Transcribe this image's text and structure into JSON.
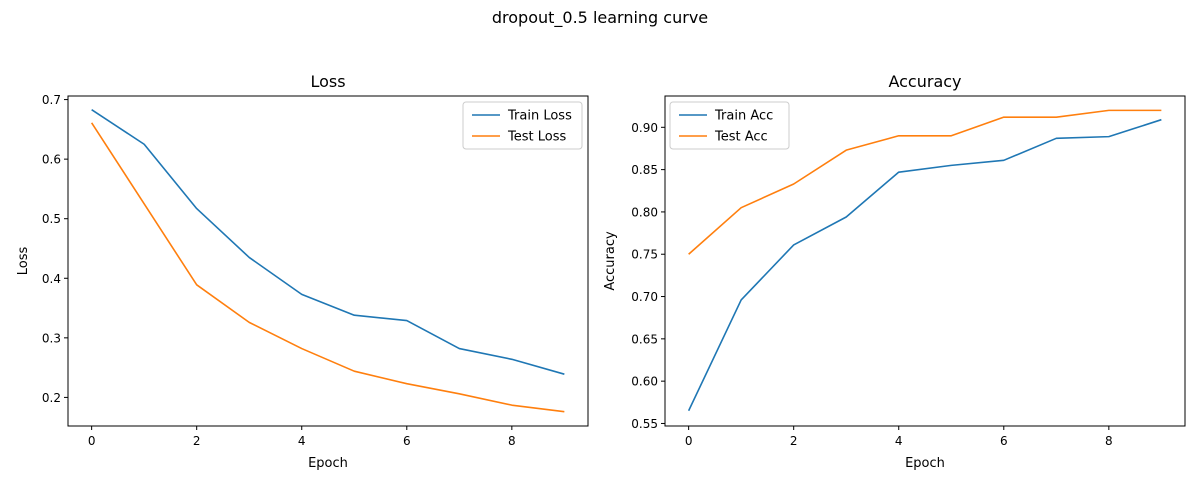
{
  "figure": {
    "suptitle": "dropout_0.5 learning curve"
  },
  "chart_data": [
    {
      "type": "line",
      "title": "Loss",
      "xlabel": "Epoch",
      "ylabel": "Loss",
      "x": [
        0,
        1,
        2,
        3,
        4,
        5,
        6,
        7,
        8,
        9
      ],
      "xlim": [
        -0.45,
        9.45
      ],
      "ylim": [
        0.152,
        0.706
      ],
      "xticks": [
        0,
        2,
        4,
        6,
        8
      ],
      "yticks": [
        0.2,
        0.3,
        0.4,
        0.5,
        0.6,
        0.7
      ],
      "ytick_labels": [
        "0.2",
        "0.3",
        "0.4",
        "0.5",
        "0.6",
        "0.7"
      ],
      "legend_position": "top-right",
      "series": [
        {
          "name": "Train Loss",
          "color": "#1f77b4",
          "values": [
            0.683,
            0.625,
            0.517,
            0.435,
            0.373,
            0.338,
            0.329,
            0.282,
            0.264,
            0.239
          ]
        },
        {
          "name": "Test Loss",
          "color": "#ff7f0e",
          "values": [
            0.661,
            0.525,
            0.389,
            0.326,
            0.282,
            0.244,
            0.223,
            0.206,
            0.187,
            0.176
          ]
        }
      ]
    },
    {
      "type": "line",
      "title": "Accuracy",
      "xlabel": "Epoch",
      "ylabel": "Accuracy",
      "x": [
        0,
        1,
        2,
        3,
        4,
        5,
        6,
        7,
        8,
        9
      ],
      "xlim": [
        -0.45,
        9.45
      ],
      "ylim": [
        0.547,
        0.937
      ],
      "xticks": [
        0,
        2,
        4,
        6,
        8
      ],
      "yticks": [
        0.55,
        0.6,
        0.65,
        0.7,
        0.75,
        0.8,
        0.85,
        0.9
      ],
      "ytick_labels": [
        "0.55",
        "0.60",
        "0.65",
        "0.70",
        "0.75",
        "0.80",
        "0.85",
        "0.90"
      ],
      "legend_position": "top-left",
      "series": [
        {
          "name": "Train Acc",
          "color": "#1f77b4",
          "values": [
            0.565,
            0.696,
            0.761,
            0.794,
            0.847,
            0.855,
            0.861,
            0.887,
            0.889,
            0.909
          ]
        },
        {
          "name": "Test Acc",
          "color": "#ff7f0e",
          "values": [
            0.75,
            0.805,
            0.833,
            0.873,
            0.89,
            0.89,
            0.912,
            0.912,
            0.92,
            0.92
          ]
        }
      ]
    }
  ]
}
